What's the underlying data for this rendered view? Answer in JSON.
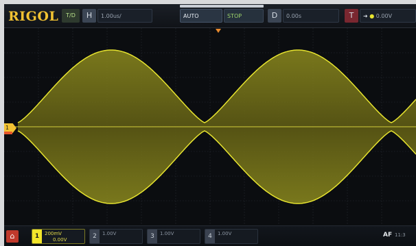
{
  "brand": {
    "logo": "RIGOL"
  },
  "top_bar": {
    "mode_tag": "T/D",
    "timebase": "1.00us/",
    "timebase_sub": "",
    "run_state": "AUTO",
    "trigger_mode": "STOP",
    "delay": "0.00s",
    "trigger_level": "0.00V"
  },
  "channels": [
    {
      "num": "1",
      "line1": "200mV",
      "line2": "0.00V",
      "active": true
    },
    {
      "num": "2",
      "line1": "1.00V",
      "line2": "",
      "active": false
    },
    {
      "num": "3",
      "line1": "1.00V",
      "line2": "",
      "active": false
    },
    {
      "num": "4",
      "line1": "1.00V",
      "line2": "",
      "active": false
    }
  ],
  "status": {
    "text": "AF",
    "time": "11:3"
  },
  "markers": {
    "ch1": "1"
  },
  "waveform": {
    "color": "#e7e42f",
    "type": "amplitude-modulated",
    "envelope_cycles_visible": 2
  }
}
